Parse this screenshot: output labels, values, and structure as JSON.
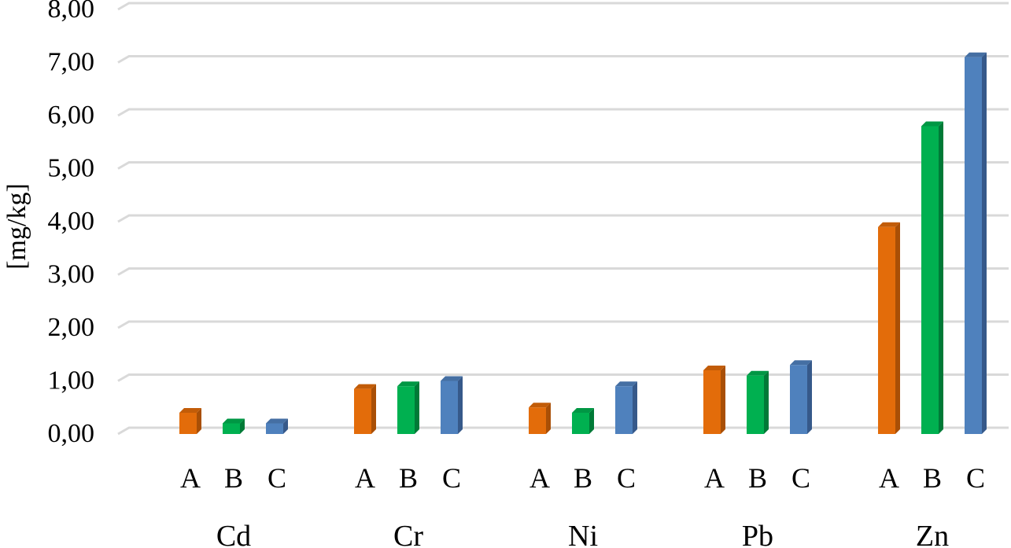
{
  "chart_data": {
    "type": "bar",
    "ylabel": "[mg/kg]",
    "ylim": [
      0,
      8
    ],
    "yticks": [
      "0,00",
      "1,00",
      "2,00",
      "3,00",
      "4,00",
      "5,00",
      "6,00",
      "7,00",
      "8,00"
    ],
    "grid": true,
    "groups": [
      {
        "label": "Cd",
        "bars": [
          {
            "sub": "A",
            "value": 0.4
          },
          {
            "sub": "B",
            "value": 0.2
          },
          {
            "sub": "C",
            "value": 0.2
          }
        ]
      },
      {
        "label": "Cr",
        "bars": [
          {
            "sub": "A",
            "value": 0.85
          },
          {
            "sub": "B",
            "value": 0.9
          },
          {
            "sub": "C",
            "value": 1.0
          }
        ]
      },
      {
        "label": "Ni",
        "bars": [
          {
            "sub": "A",
            "value": 0.5
          },
          {
            "sub": "B",
            "value": 0.4
          },
          {
            "sub": "C",
            "value": 0.9
          }
        ]
      },
      {
        "label": "Pb",
        "bars": [
          {
            "sub": "A",
            "value": 1.2
          },
          {
            "sub": "B",
            "value": 1.1
          },
          {
            "sub": "C",
            "value": 1.3
          }
        ]
      },
      {
        "label": "Zn",
        "bars": [
          {
            "sub": "A",
            "value": 3.9
          },
          {
            "sub": "B",
            "value": 5.8
          },
          {
            "sub": "C",
            "value": 7.1
          }
        ]
      }
    ],
    "colors": {
      "A": {
        "front": "#e36c0a",
        "side": "#a94f06",
        "top": "#c25c08"
      },
      "B": {
        "front": "#00b050",
        "side": "#007a37",
        "top": "#009744"
      },
      "C": {
        "front": "#4f81bd",
        "side": "#36598a",
        "top": "#456fa3"
      }
    }
  }
}
